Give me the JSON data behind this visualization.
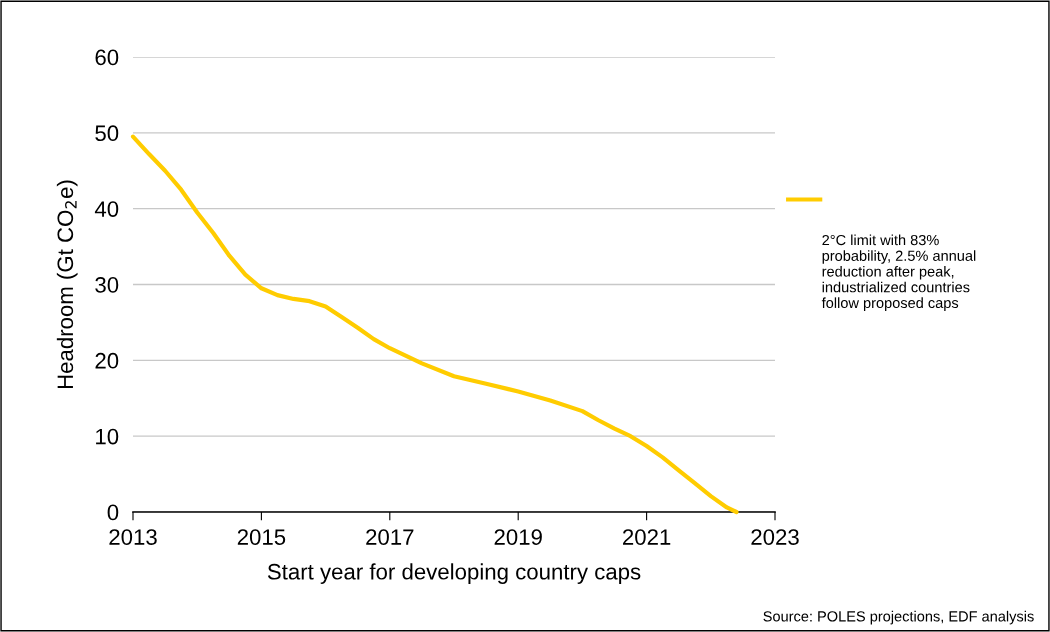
{
  "chart_data": {
    "type": "line",
    "xlabel": "Start year for developing country caps",
    "ylabel": "Headroom (Gt CO$_{2}$e)",
    "series": [
      {
        "name": "2°C limit with 83% probability, 2.5% annual reduction after peak, industrialized countries follow proposed caps",
        "color": "#ffcc00",
        "x": [
          2013,
          2013.25,
          2013.5,
          2013.75,
          2014,
          2014.25,
          2014.5,
          2014.75,
          2015,
          2015.25,
          2015.5,
          2015.75,
          2016,
          2016.25,
          2016.5,
          2016.75,
          2017,
          2017.5,
          2018,
          2018.5,
          2019,
          2019.5,
          2020,
          2020.25,
          2020.5,
          2020.75,
          2021,
          2021.25,
          2021.5,
          2021.75,
          2022,
          2022.25,
          2022.4
        ],
        "values": [
          49.5,
          47.2,
          45.0,
          42.5,
          39.5,
          36.8,
          33.8,
          31.3,
          29.5,
          28.6,
          28.1,
          27.8,
          27.1,
          25.7,
          24.3,
          22.8,
          21.6,
          19.6,
          17.9,
          16.9,
          15.9,
          14.7,
          13.3,
          12.1,
          11.0,
          10.0,
          8.7,
          7.2,
          5.5,
          3.8,
          2.1,
          0.6,
          0
        ]
      }
    ],
    "xlim": [
      2013,
      2023
    ],
    "xticks": [
      2013,
      2015,
      2017,
      2019,
      2021,
      2023
    ],
    "ylim": [
      0,
      60
    ],
    "yticks": [
      0,
      10,
      20,
      30,
      40,
      50,
      60
    ],
    "grid": "y",
    "legend": "right",
    "marker": "none",
    "line_style": "solid",
    "annotations": [
      "Source: POLES projections, EDF analysis"
    ]
  }
}
